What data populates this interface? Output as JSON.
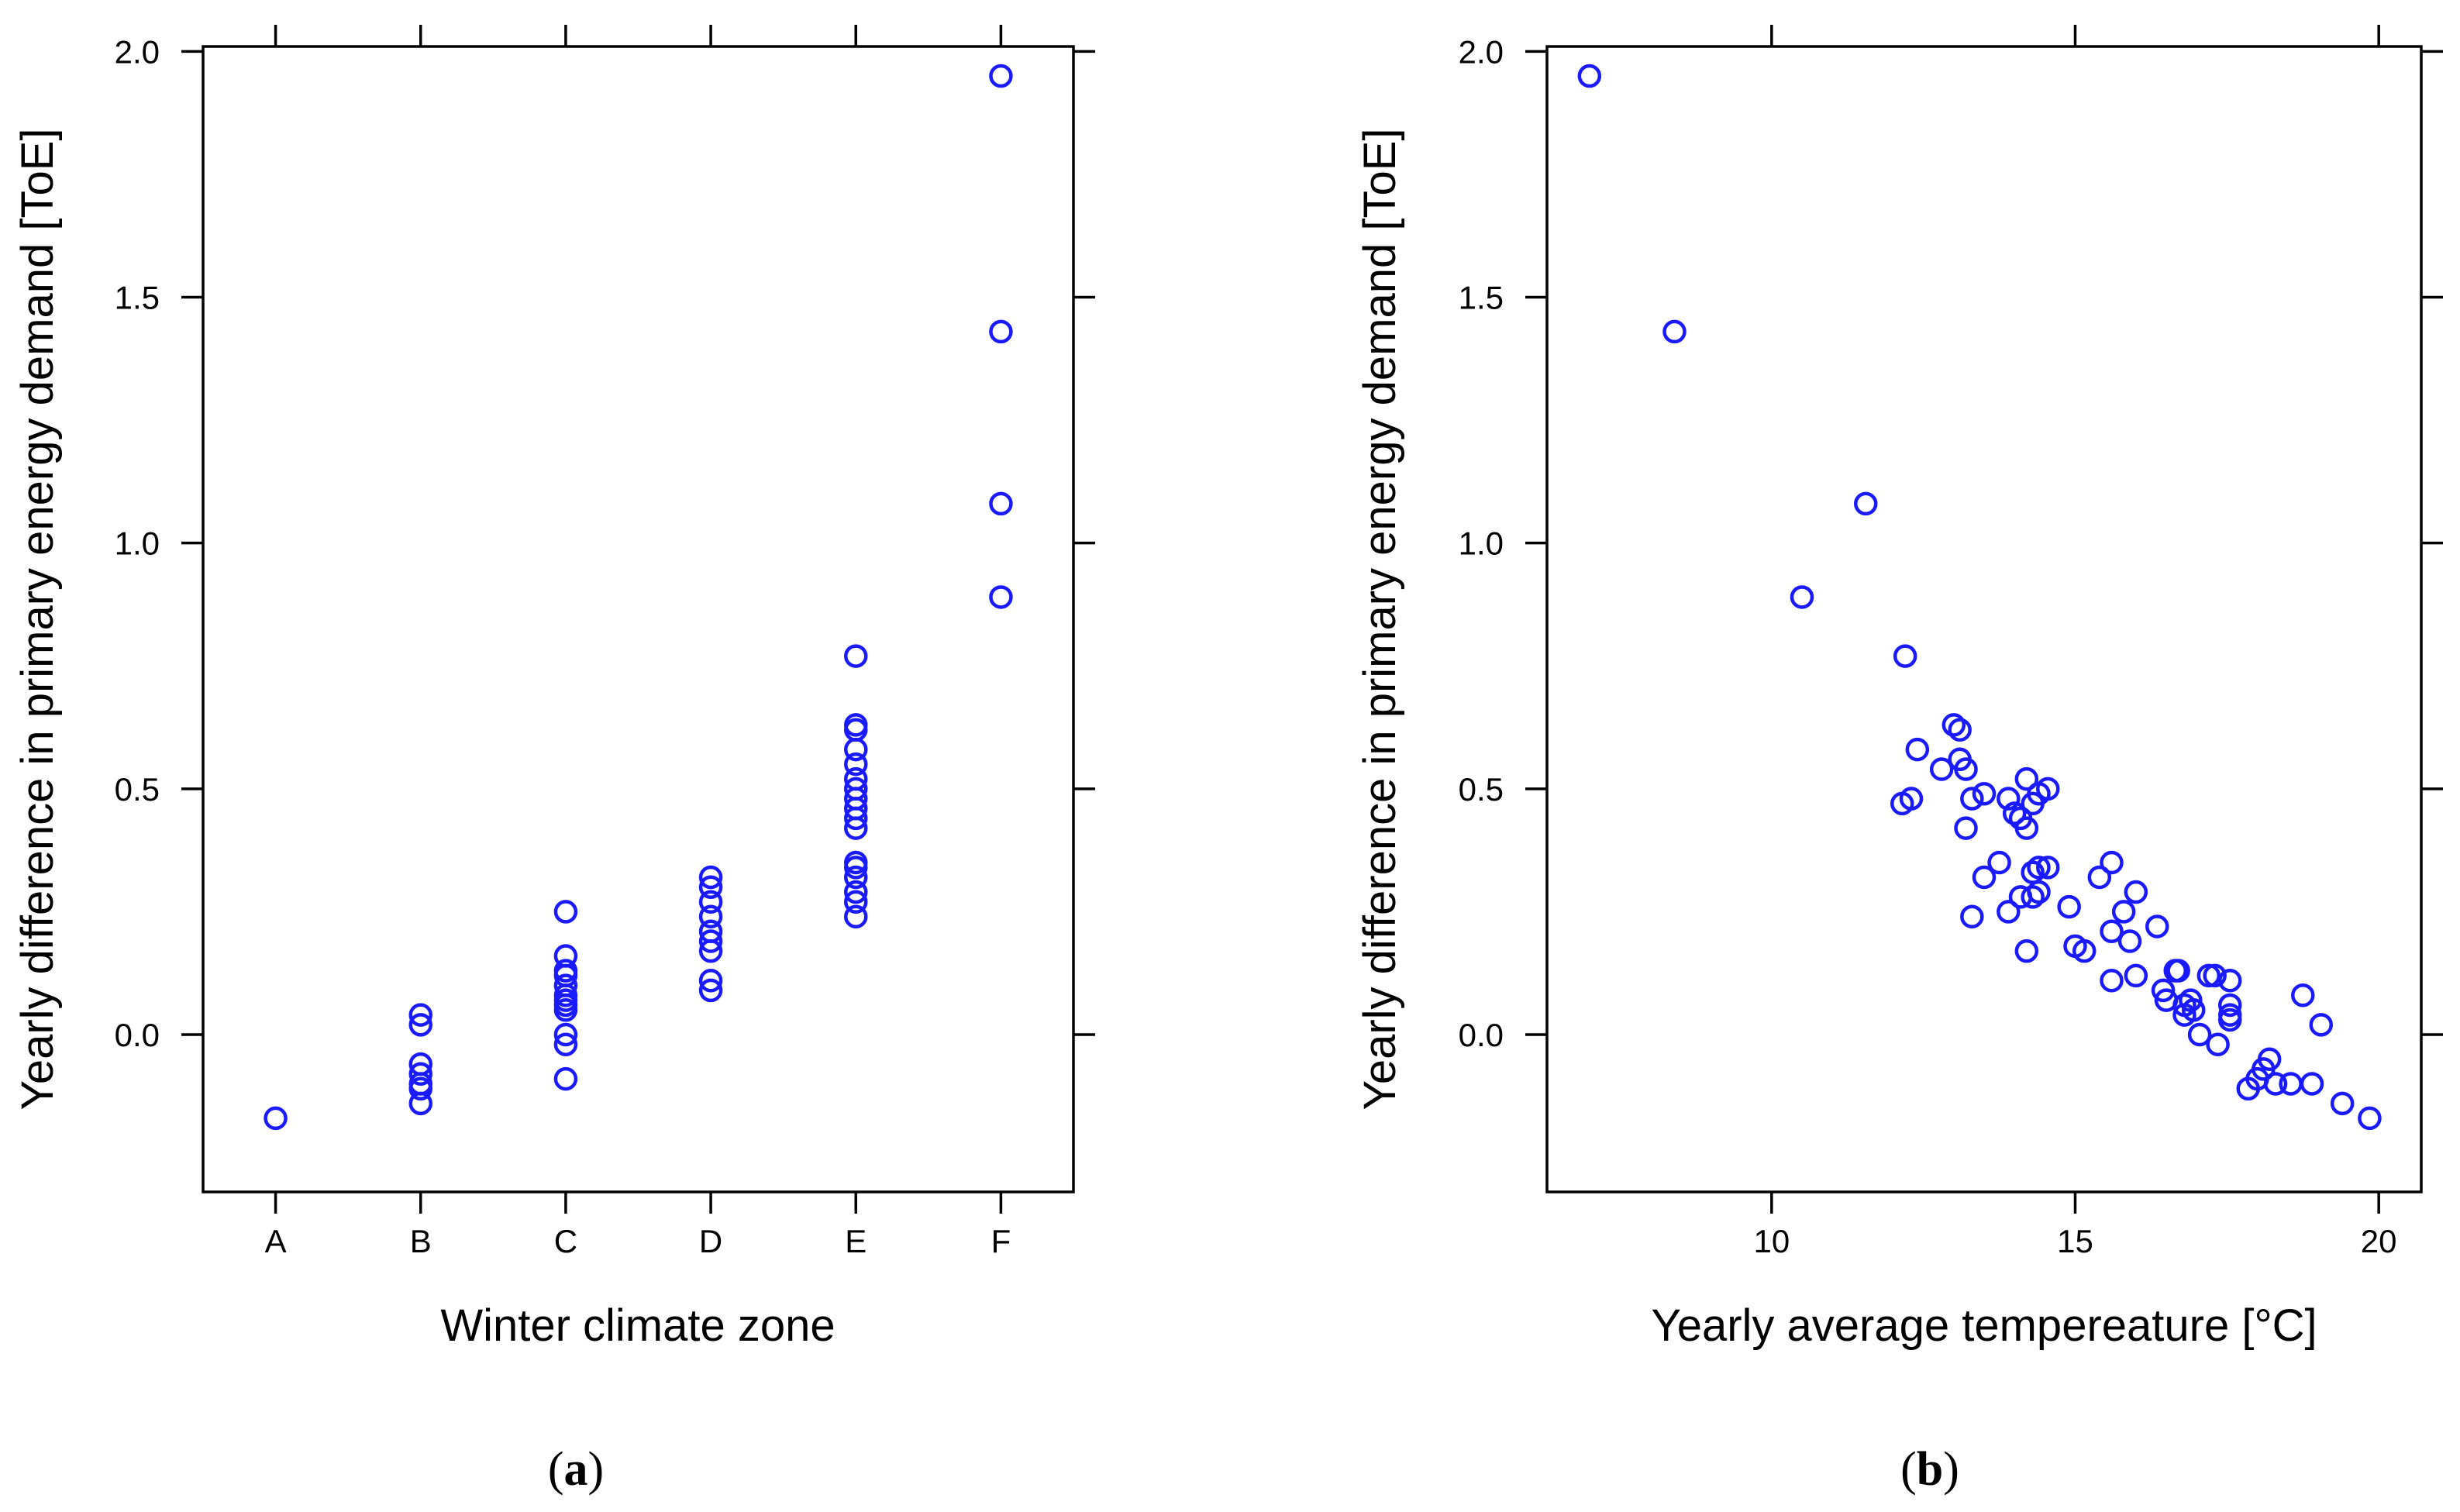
{
  "colors": {
    "points": "#1a1aff",
    "axes": "#000000"
  },
  "chart_data": [
    {
      "type": "scatter",
      "panel": "a",
      "caption_letter": "a",
      "caption_open": "(",
      "caption_close": ")",
      "xlabel": "Winter climate zone",
      "ylabel": "Yearly difference in primary energy demand [ToE]",
      "categories": [
        "A",
        "B",
        "C",
        "D",
        "E",
        "F"
      ],
      "y_ticks": [
        0.0,
        0.5,
        1.0,
        1.5,
        2.0
      ],
      "y_tick_labels": [
        "0.0",
        "0.5",
        "1.0",
        "1.5",
        "2.0"
      ],
      "ylim": [
        -0.32,
        2.01
      ],
      "points": [
        {
          "x": "A",
          "y": -0.17
        },
        {
          "x": "B",
          "y": 0.04
        },
        {
          "x": "B",
          "y": 0.02
        },
        {
          "x": "B",
          "y": -0.06
        },
        {
          "x": "B",
          "y": -0.08
        },
        {
          "x": "B",
          "y": -0.1
        },
        {
          "x": "B",
          "y": -0.11
        },
        {
          "x": "B",
          "y": -0.14
        },
        {
          "x": "C",
          "y": 0.25
        },
        {
          "x": "C",
          "y": 0.16
        },
        {
          "x": "C",
          "y": 0.13
        },
        {
          "x": "C",
          "y": 0.12
        },
        {
          "x": "C",
          "y": 0.1
        },
        {
          "x": "C",
          "y": 0.08
        },
        {
          "x": "C",
          "y": 0.07
        },
        {
          "x": "C",
          "y": 0.06
        },
        {
          "x": "C",
          "y": 0.05
        },
        {
          "x": "C",
          "y": 0.0
        },
        {
          "x": "C",
          "y": -0.02
        },
        {
          "x": "C",
          "y": -0.09
        },
        {
          "x": "D",
          "y": 0.32
        },
        {
          "x": "D",
          "y": 0.3
        },
        {
          "x": "D",
          "y": 0.27
        },
        {
          "x": "D",
          "y": 0.24
        },
        {
          "x": "D",
          "y": 0.21
        },
        {
          "x": "D",
          "y": 0.19
        },
        {
          "x": "D",
          "y": 0.17
        },
        {
          "x": "D",
          "y": 0.11
        },
        {
          "x": "D",
          "y": 0.09
        },
        {
          "x": "E",
          "y": 0.77
        },
        {
          "x": "E",
          "y": 0.63
        },
        {
          "x": "E",
          "y": 0.62
        },
        {
          "x": "E",
          "y": 0.58
        },
        {
          "x": "E",
          "y": 0.55
        },
        {
          "x": "E",
          "y": 0.52
        },
        {
          "x": "E",
          "y": 0.5
        },
        {
          "x": "E",
          "y": 0.48
        },
        {
          "x": "E",
          "y": 0.46
        },
        {
          "x": "E",
          "y": 0.44
        },
        {
          "x": "E",
          "y": 0.42
        },
        {
          "x": "E",
          "y": 0.35
        },
        {
          "x": "E",
          "y": 0.34
        },
        {
          "x": "E",
          "y": 0.32
        },
        {
          "x": "E",
          "y": 0.29
        },
        {
          "x": "E",
          "y": 0.27
        },
        {
          "x": "E",
          "y": 0.24
        },
        {
          "x": "F",
          "y": 1.95
        },
        {
          "x": "F",
          "y": 1.43
        },
        {
          "x": "F",
          "y": 1.08
        },
        {
          "x": "F",
          "y": 0.89
        }
      ]
    },
    {
      "type": "scatter",
      "panel": "b",
      "caption_letter": "b",
      "caption_open": "(",
      "caption_close": ")",
      "xlabel": "Yearly average tempereature [°C]",
      "ylabel": "Yearly difference in primary energy demand [ToE]",
      "x_ticks": [
        10,
        15,
        20
      ],
      "x_tick_labels": [
        "10",
        "15",
        "20"
      ],
      "xlim": [
        6.3,
        20.7
      ],
      "y_ticks": [
        0.0,
        0.5,
        1.0,
        1.5,
        2.0
      ],
      "y_tick_labels": [
        "0.0",
        "0.5",
        "1.0",
        "1.5",
        "2.0"
      ],
      "ylim": [
        -0.32,
        2.01
      ],
      "points": [
        {
          "x": 7.0,
          "y": 1.95
        },
        {
          "x": 8.4,
          "y": 1.43
        },
        {
          "x": 11.55,
          "y": 1.08
        },
        {
          "x": 10.5,
          "y": 0.89
        },
        {
          "x": 12.2,
          "y": 0.77
        },
        {
          "x": 12.15,
          "y": 0.47
        },
        {
          "x": 12.3,
          "y": 0.48
        },
        {
          "x": 12.4,
          "y": 0.58
        },
        {
          "x": 12.8,
          "y": 0.54
        },
        {
          "x": 13.0,
          "y": 0.63
        },
        {
          "x": 13.1,
          "y": 0.62
        },
        {
          "x": 13.1,
          "y": 0.56
        },
        {
          "x": 13.2,
          "y": 0.54
        },
        {
          "x": 13.2,
          "y": 0.42
        },
        {
          "x": 13.3,
          "y": 0.48
        },
        {
          "x": 13.3,
          "y": 0.24
        },
        {
          "x": 13.5,
          "y": 0.49
        },
        {
          "x": 13.5,
          "y": 0.32
        },
        {
          "x": 13.75,
          "y": 0.35
        },
        {
          "x": 13.9,
          "y": 0.48
        },
        {
          "x": 13.9,
          "y": 0.25
        },
        {
          "x": 14.0,
          "y": 0.45
        },
        {
          "x": 14.1,
          "y": 0.44
        },
        {
          "x": 14.1,
          "y": 0.28
        },
        {
          "x": 14.2,
          "y": 0.52
        },
        {
          "x": 14.2,
          "y": 0.42
        },
        {
          "x": 14.2,
          "y": 0.17
        },
        {
          "x": 14.3,
          "y": 0.47
        },
        {
          "x": 14.3,
          "y": 0.33
        },
        {
          "x": 14.3,
          "y": 0.28
        },
        {
          "x": 14.4,
          "y": 0.49
        },
        {
          "x": 14.4,
          "y": 0.34
        },
        {
          "x": 14.4,
          "y": 0.29
        },
        {
          "x": 14.55,
          "y": 0.5
        },
        {
          "x": 14.55,
          "y": 0.34
        },
        {
          "x": 14.9,
          "y": 0.26
        },
        {
          "x": 15.0,
          "y": 0.18
        },
        {
          "x": 15.15,
          "y": 0.17
        },
        {
          "x": 15.4,
          "y": 0.32
        },
        {
          "x": 15.6,
          "y": 0.35
        },
        {
          "x": 15.6,
          "y": 0.21
        },
        {
          "x": 15.6,
          "y": 0.11
        },
        {
          "x": 15.8,
          "y": 0.25
        },
        {
          "x": 15.9,
          "y": 0.19
        },
        {
          "x": 16.0,
          "y": 0.29
        },
        {
          "x": 16.0,
          "y": 0.12
        },
        {
          "x": 16.35,
          "y": 0.22
        },
        {
          "x": 16.45,
          "y": 0.09
        },
        {
          "x": 16.5,
          "y": 0.07
        },
        {
          "x": 16.65,
          "y": 0.13
        },
        {
          "x": 16.7,
          "y": 0.13
        },
        {
          "x": 16.8,
          "y": 0.06
        },
        {
          "x": 16.8,
          "y": 0.04
        },
        {
          "x": 16.9,
          "y": 0.07
        },
        {
          "x": 16.95,
          "y": 0.05
        },
        {
          "x": 17.05,
          "y": 0.0
        },
        {
          "x": 17.2,
          "y": 0.12
        },
        {
          "x": 17.3,
          "y": 0.12
        },
        {
          "x": 17.35,
          "y": -0.02
        },
        {
          "x": 17.55,
          "y": 0.11
        },
        {
          "x": 17.55,
          "y": 0.06
        },
        {
          "x": 17.55,
          "y": 0.04
        },
        {
          "x": 17.55,
          "y": 0.03
        },
        {
          "x": 17.85,
          "y": -0.11
        },
        {
          "x": 18.0,
          "y": -0.09
        },
        {
          "x": 18.1,
          "y": -0.07
        },
        {
          "x": 18.2,
          "y": -0.05
        },
        {
          "x": 18.3,
          "y": -0.1
        },
        {
          "x": 18.55,
          "y": -0.1
        },
        {
          "x": 18.75,
          "y": 0.08
        },
        {
          "x": 18.9,
          "y": -0.1
        },
        {
          "x": 19.05,
          "y": 0.02
        },
        {
          "x": 19.4,
          "y": -0.14
        },
        {
          "x": 19.85,
          "y": -0.17
        }
      ]
    }
  ]
}
